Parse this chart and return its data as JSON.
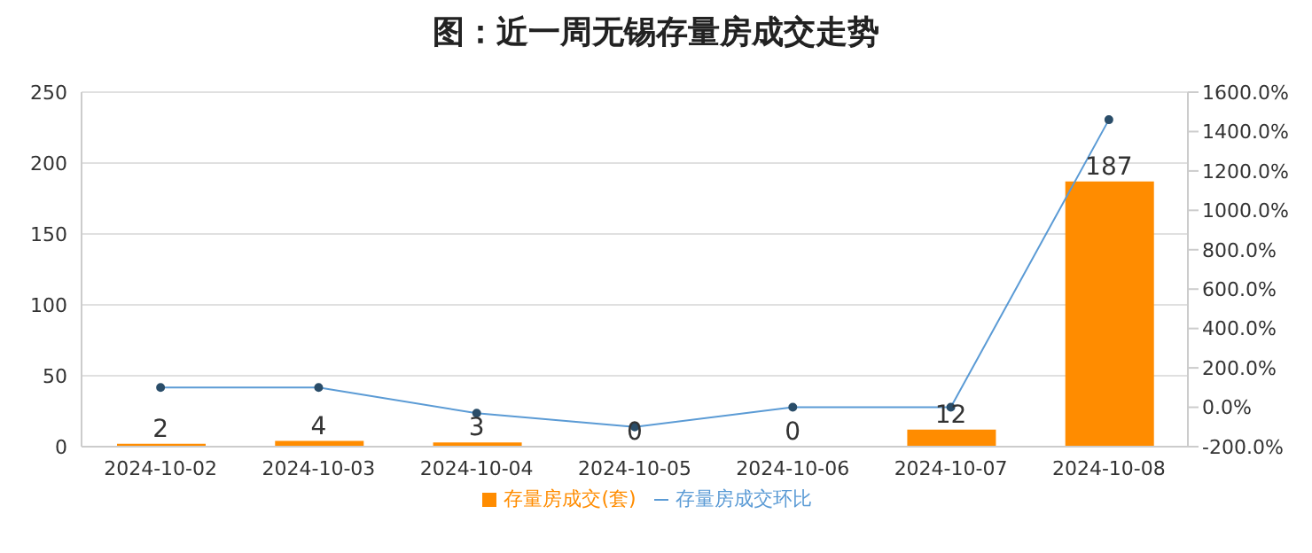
{
  "chart_data": {
    "type": "bar",
    "title": "图：近一周无锡存量房成交走势",
    "categories": [
      "2024-10-02",
      "2024-10-03",
      "2024-10-04",
      "2024-10-05",
      "2024-10-06",
      "2024-10-07",
      "2024-10-08"
    ],
    "series": [
      {
        "name": "存量房成交(套)",
        "color": "#ff8c00",
        "values": [
          2,
          4,
          3,
          0,
          0,
          12,
          187
        ],
        "value_labels": [
          "2",
          "4",
          "3",
          "0",
          "0",
          "12",
          "187"
        ]
      },
      {
        "name": "存量房成交环比",
        "type": "line",
        "axis": "y2",
        "color": "#5b9bd5",
        "values": [
          100,
          100,
          -30,
          -100,
          0,
          0,
          1460
        ]
      }
    ],
    "ylim": [
      0,
      250
    ],
    "yticks": [
      0,
      50,
      100,
      150,
      200,
      250
    ],
    "y2lim": [
      -200,
      1600
    ],
    "y2ticks": [
      {
        "value": -200,
        "label": "-200.0%"
      },
      {
        "value": 0,
        "label": "0.0%"
      },
      {
        "value": 200,
        "label": "200.0%"
      },
      {
        "value": 400,
        "label": "400.0%"
      },
      {
        "value": 600,
        "label": "600.0%"
      },
      {
        "value": 800,
        "label": "800.0%"
      },
      {
        "value": 1000,
        "label": "1000.0%"
      },
      {
        "value": 1200,
        "label": "1200.0%"
      },
      {
        "value": 1400,
        "label": "1400.0%"
      },
      {
        "value": 1600,
        "label": "1600.0%"
      }
    ],
    "grid": "y",
    "legend": "bottom",
    "marker": "circle"
  }
}
